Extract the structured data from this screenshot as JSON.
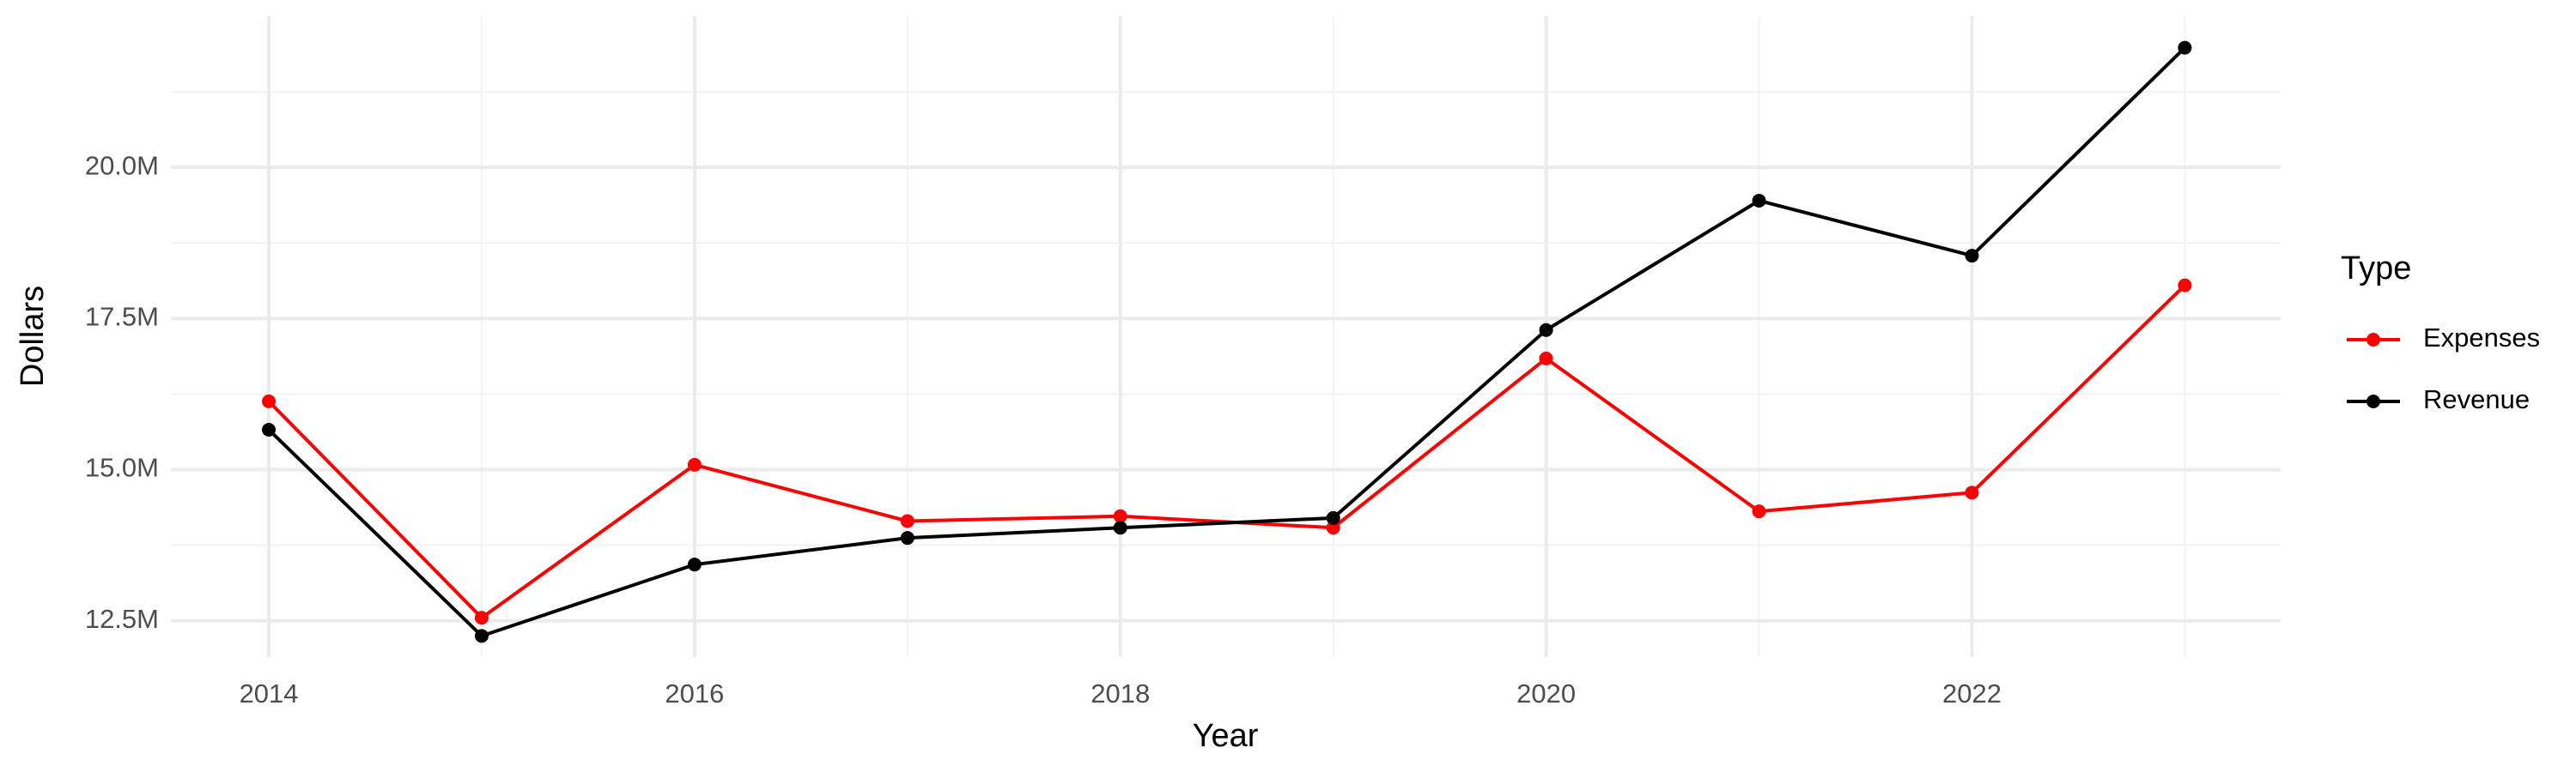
{
  "chart_data": {
    "type": "line",
    "x_label": "Year",
    "y_label": "Dollars",
    "legend_title": "Type",
    "x": [
      2014,
      2015,
      2016,
      2017,
      2018,
      2019,
      2020,
      2021,
      2022,
      2023
    ],
    "series": [
      {
        "name": "Expenses",
        "color": "#ff0000",
        "values": [
          16130000,
          12550000,
          15080000,
          14150000,
          14230000,
          14040000,
          16840000,
          14310000,
          14620000,
          18050000
        ]
      },
      {
        "name": "Revenue",
        "color": "#000000",
        "values": [
          15660000,
          12250000,
          13430000,
          13870000,
          14040000,
          14200000,
          17310000,
          19450000,
          18540000,
          21980000
        ]
      }
    ],
    "xlim": [
      2013.54,
      2023.45
    ],
    "xticks": [
      2014,
      2016,
      2018,
      2020,
      2022
    ],
    "ylim": [
      11900000,
      22500000
    ],
    "yticks": [
      {
        "value": 12500000,
        "label": "12.5M"
      },
      {
        "value": 15000000,
        "label": "15.0M"
      },
      {
        "value": 17500000,
        "label": "17.5M"
      },
      {
        "value": 20000000,
        "label": "20.0M"
      }
    ],
    "grid": true,
    "legend_position": "right"
  }
}
